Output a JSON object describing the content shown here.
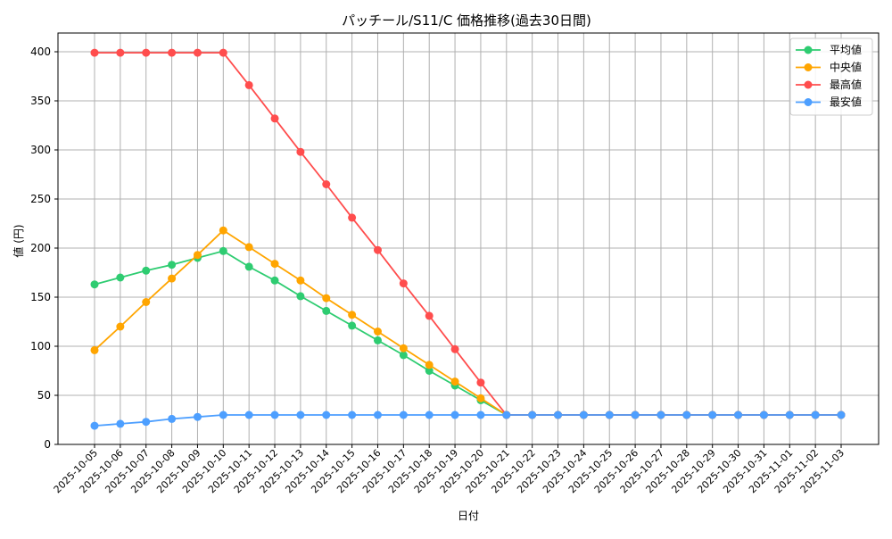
{
  "chart_data": {
    "type": "line",
    "title": "パッチール/S11/C 価格推移(過去30日間)",
    "xlabel": "日付",
    "ylabel": "値 (円)",
    "ylim": [
      0,
      420
    ],
    "yticks": [
      0,
      50,
      100,
      150,
      200,
      250,
      300,
      350,
      400
    ],
    "grid": true,
    "legend_position": "upper right",
    "categories": [
      "2025-10-05",
      "2025-10-06",
      "2025-10-07",
      "2025-10-08",
      "2025-10-09",
      "2025-10-10",
      "2025-10-11",
      "2025-10-12",
      "2025-10-13",
      "2025-10-14",
      "2025-10-15",
      "2025-10-16",
      "2025-10-17",
      "2025-10-18",
      "2025-10-19",
      "2025-10-20",
      "2025-10-21",
      "2025-10-22",
      "2025-10-23",
      "2025-10-24",
      "2025-10-25",
      "2025-10-26",
      "2025-10-27",
      "2025-10-28",
      "2025-10-29",
      "2025-10-30",
      "2025-10-31",
      "2025-11-01",
      "2025-11-02",
      "2025-11-03"
    ],
    "series": [
      {
        "name": "平均値",
        "color": "#2ecc71",
        "values": [
          163,
          170,
          177,
          183,
          190,
          197,
          181,
          167,
          151,
          136,
          121,
          106,
          91,
          75,
          60,
          45,
          30,
          30,
          30,
          30,
          30,
          30,
          30,
          30,
          30,
          30,
          30,
          30,
          30,
          30
        ]
      },
      {
        "name": "中央値",
        "color": "#ffa500",
        "values": [
          96,
          120,
          145,
          169,
          193,
          218,
          201,
          184,
          167,
          149,
          132,
          115,
          98,
          81,
          64,
          47,
          30,
          30,
          30,
          30,
          30,
          30,
          30,
          30,
          30,
          30,
          30,
          30,
          30,
          30
        ]
      },
      {
        "name": "最高値",
        "color": "#ff4d4d",
        "values": [
          399,
          399,
          399,
          399,
          399,
          399,
          366,
          332,
          298,
          265,
          231,
          198,
          164,
          131,
          97,
          63,
          30,
          30,
          30,
          30,
          30,
          30,
          30,
          30,
          30,
          30,
          30,
          30,
          30,
          30
        ]
      },
      {
        "name": "最安値",
        "color": "#4d9fff",
        "values": [
          19,
          21,
          23,
          26,
          28,
          30,
          30,
          30,
          30,
          30,
          30,
          30,
          30,
          30,
          30,
          30,
          30,
          30,
          30,
          30,
          30,
          30,
          30,
          30,
          30,
          30,
          30,
          30,
          30,
          30
        ]
      }
    ]
  }
}
